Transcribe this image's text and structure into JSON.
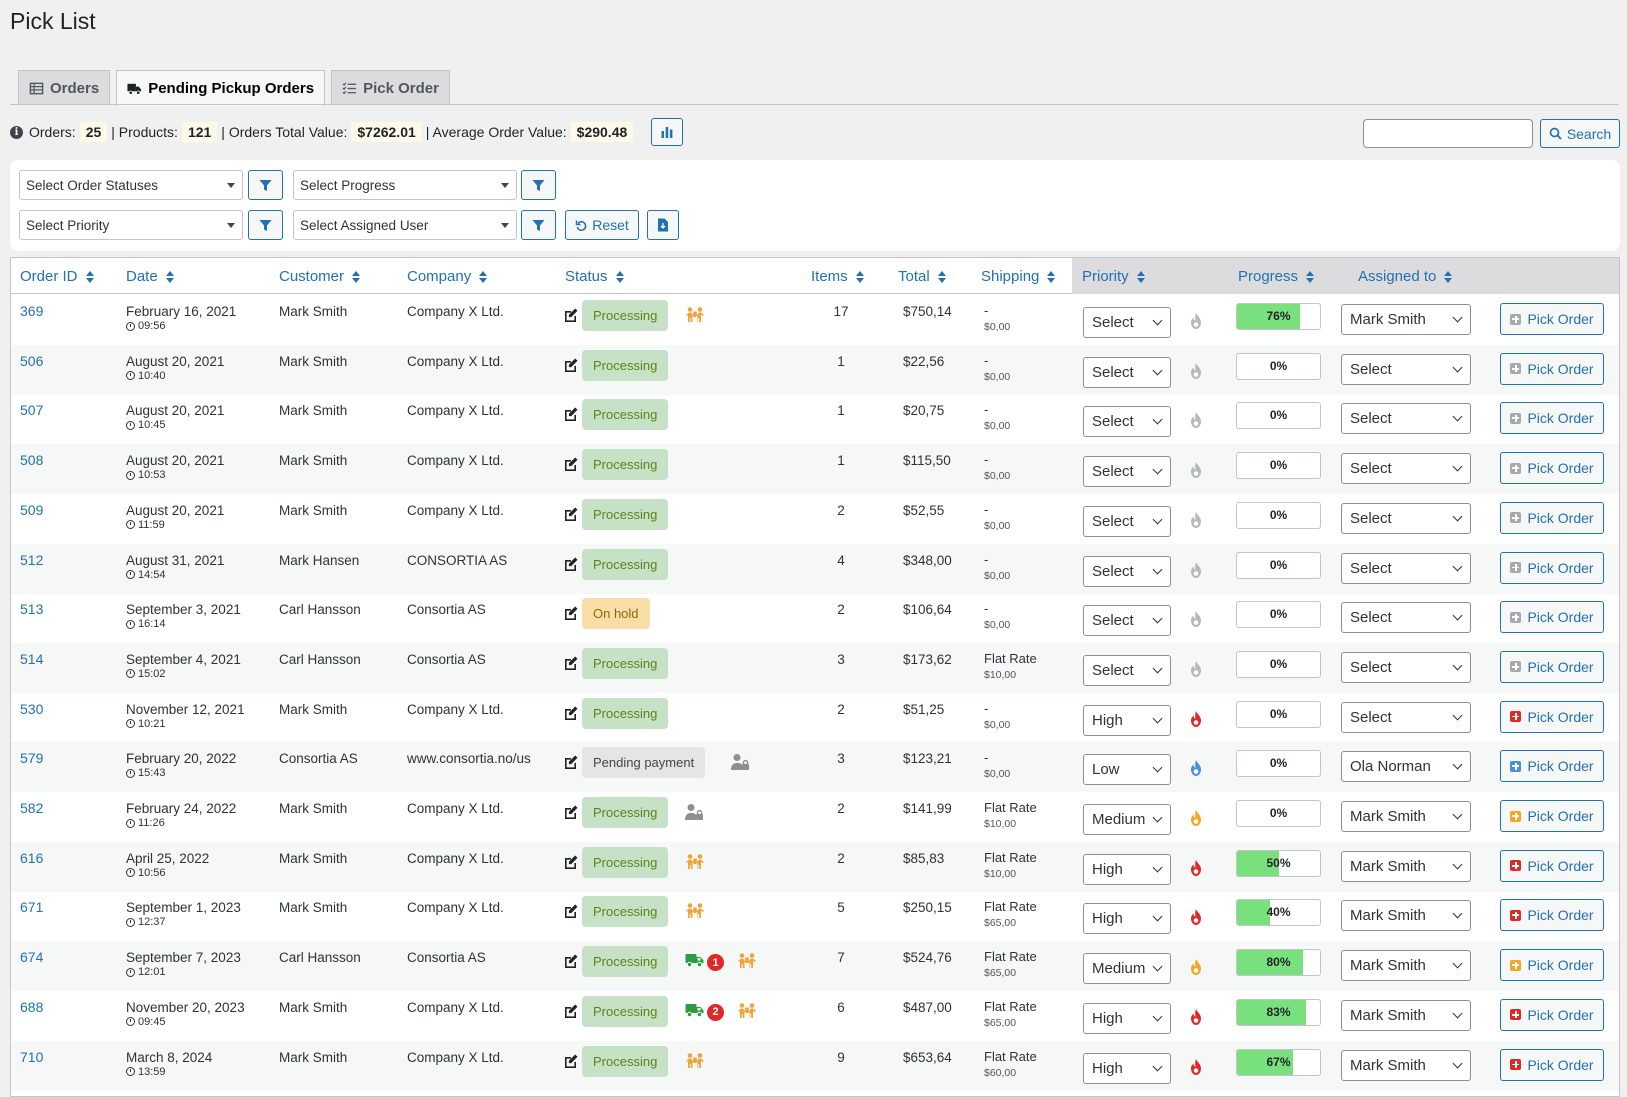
{
  "page": {
    "title": "Pick List"
  },
  "tabs": [
    {
      "label": "Orders",
      "icon": "table-icon",
      "active": false
    },
    {
      "label": "Pending Pickup Orders",
      "icon": "truck-icon",
      "active": true
    },
    {
      "label": "Pick Order",
      "icon": "checklist-icon",
      "active": false
    }
  ],
  "stats": {
    "orders_label": "Orders:",
    "orders_value": "25",
    "products_label": "| Products:",
    "products_value": "121",
    "total_label": "| Orders Total Value:",
    "total_value": "$7262.01",
    "avg_label": "| Average Order Value:",
    "avg_value": "$290.48"
  },
  "search": {
    "button_label": "Search",
    "placeholder": "",
    "value": ""
  },
  "filters": {
    "order_statuses": "Select Order Statuses",
    "progress": "Select Progress",
    "priority": "Select Priority",
    "assigned_user": "Select Assigned User",
    "reset_label": "Reset"
  },
  "columns": {
    "order_id": "Order ID",
    "date": "Date",
    "customer": "Customer",
    "company": "Company",
    "status": "Status",
    "items": "Items",
    "total": "Total",
    "shipping": "Shipping",
    "priority": "Priority",
    "progress": "Progress",
    "assigned_to": "Assigned to"
  },
  "pick_label": "Pick Order",
  "colors": {
    "accent": "#2271b1",
    "processing_bg": "#c6e1c6",
    "processing_fg": "#5b841b",
    "onhold_bg": "#f8dda7",
    "onhold_fg": "#94660c",
    "pending_bg": "#e5e5e5",
    "pending_fg": "#454545",
    "priority_high": "#e32727",
    "priority_medium": "#f6a623",
    "priority_low": "#4a90e2",
    "priority_none": "#b4b9be",
    "progress_fill": "#79e07e",
    "picker_icon": "#f0a33a",
    "truck_icon": "#2a9d3f"
  },
  "rows": [
    {
      "id": "369",
      "date": "February 16, 2021",
      "time": "09:56",
      "customer": "Mark Smith",
      "company": "Company X Ltd.",
      "status": "Processing",
      "status_type": "processing",
      "icons": [
        "pickers"
      ],
      "items": "17",
      "total": "$750,14",
      "shipping": "-",
      "shipping_sub": "$0,00",
      "priority": "Select",
      "priority_level": "none",
      "progress": "76%",
      "progress_value": 76,
      "assigned": "Mark Smith"
    },
    {
      "id": "506",
      "date": "August 20, 2021",
      "time": "10:40",
      "customer": "Mark Smith",
      "company": "Company X Ltd.",
      "status": "Processing",
      "status_type": "processing",
      "icons": [],
      "items": "1",
      "total": "$22,56",
      "shipping": "-",
      "shipping_sub": "$0,00",
      "priority": "Select",
      "priority_level": "none",
      "progress": "0%",
      "progress_value": 0,
      "assigned": "Select"
    },
    {
      "id": "507",
      "date": "August 20, 2021",
      "time": "10:45",
      "customer": "Mark Smith",
      "company": "Company X Ltd.",
      "status": "Processing",
      "status_type": "processing",
      "icons": [],
      "items": "1",
      "total": "$20,75",
      "shipping": "-",
      "shipping_sub": "$0,00",
      "priority": "Select",
      "priority_level": "none",
      "progress": "0%",
      "progress_value": 0,
      "assigned": "Select"
    },
    {
      "id": "508",
      "date": "August 20, 2021",
      "time": "10:53",
      "customer": "Mark Smith",
      "company": "Company X Ltd.",
      "status": "Processing",
      "status_type": "processing",
      "icons": [],
      "items": "1",
      "total": "$115,50",
      "shipping": "-",
      "shipping_sub": "$0,00",
      "priority": "Select",
      "priority_level": "none",
      "progress": "0%",
      "progress_value": 0,
      "assigned": "Select"
    },
    {
      "id": "509",
      "date": "August 20, 2021",
      "time": "11:59",
      "customer": "Mark Smith",
      "company": "Company X Ltd.",
      "status": "Processing",
      "status_type": "processing",
      "icons": [],
      "items": "2",
      "total": "$52,55",
      "shipping": "-",
      "shipping_sub": "$0,00",
      "priority": "Select",
      "priority_level": "none",
      "progress": "0%",
      "progress_value": 0,
      "assigned": "Select"
    },
    {
      "id": "512",
      "date": "August 31, 2021",
      "time": "14:54",
      "customer": "Mark Hansen",
      "company": "CONSORTIA AS",
      "status": "Processing",
      "status_type": "processing",
      "icons": [],
      "items": "4",
      "total": "$348,00",
      "shipping": "-",
      "shipping_sub": "$0,00",
      "priority": "Select",
      "priority_level": "none",
      "progress": "0%",
      "progress_value": 0,
      "assigned": "Select"
    },
    {
      "id": "513",
      "date": "September 3, 2021",
      "time": "16:14",
      "customer": "Carl Hansson",
      "company": "Consortia AS",
      "status": "On hold",
      "status_type": "hold",
      "icons": [],
      "items": "2",
      "total": "$106,64",
      "shipping": "-",
      "shipping_sub": "$0,00",
      "priority": "Select",
      "priority_level": "none",
      "progress": "0%",
      "progress_value": 0,
      "assigned": "Select"
    },
    {
      "id": "514",
      "date": "September 4, 2021",
      "time": "15:02",
      "customer": "Carl Hansson",
      "company": "Consortia AS",
      "status": "Processing",
      "status_type": "processing",
      "icons": [],
      "items": "3",
      "total": "$173,62",
      "shipping": "Flat Rate",
      "shipping_sub": "$10,00",
      "priority": "Select",
      "priority_level": "none",
      "progress": "0%",
      "progress_value": 0,
      "assigned": "Select"
    },
    {
      "id": "530",
      "date": "November 12, 2021",
      "time": "10:21",
      "customer": "Mark Smith",
      "company": "Company X Ltd.",
      "status": "Processing",
      "status_type": "processing",
      "icons": [],
      "items": "2",
      "total": "$51,25",
      "shipping": "-",
      "shipping_sub": "$0,00",
      "priority": "High",
      "priority_level": "high",
      "progress": "0%",
      "progress_value": 0,
      "assigned": "Select"
    },
    {
      "id": "579",
      "date": "February 20, 2022",
      "time": "15:43",
      "customer": "Consortia AS",
      "company": "www.consortia.no/us",
      "status": "Pending payment",
      "status_type": "pending",
      "icons": [
        "user-lock"
      ],
      "items": "3",
      "total": "$123,21",
      "shipping": "-",
      "shipping_sub": "$0,00",
      "priority": "Low",
      "priority_level": "low",
      "progress": "0%",
      "progress_value": 0,
      "assigned": "Ola Norman"
    },
    {
      "id": "582",
      "date": "February 24, 2022",
      "time": "11:26",
      "customer": "Mark Smith",
      "company": "Company X Ltd.",
      "status": "Processing",
      "status_type": "processing",
      "icons": [
        "user-lock"
      ],
      "items": "2",
      "total": "$141,99",
      "shipping": "Flat Rate",
      "shipping_sub": "$10,00",
      "priority": "Medium",
      "priority_level": "medium",
      "progress": "0%",
      "progress_value": 0,
      "assigned": "Mark Smith"
    },
    {
      "id": "616",
      "date": "April 25, 2022",
      "time": "10:56",
      "customer": "Mark Smith",
      "company": "Company X Ltd.",
      "status": "Processing",
      "status_type": "processing",
      "icons": [
        "pickers"
      ],
      "items": "2",
      "total": "$85,83",
      "shipping": "Flat Rate",
      "shipping_sub": "$10,00",
      "priority": "High",
      "priority_level": "high",
      "progress": "50%",
      "progress_value": 50,
      "assigned": "Mark Smith"
    },
    {
      "id": "671",
      "date": "September 1, 2023",
      "time": "12:37",
      "customer": "Mark Smith",
      "company": "Company X Ltd.",
      "status": "Processing",
      "status_type": "processing",
      "icons": [
        "pickers"
      ],
      "items": "5",
      "total": "$250,15",
      "shipping": "Flat Rate",
      "shipping_sub": "$65,00",
      "priority": "High",
      "priority_level": "high",
      "progress": "40%",
      "progress_value": 40,
      "assigned": "Mark Smith"
    },
    {
      "id": "674",
      "date": "September 7, 2023",
      "time": "12:01",
      "customer": "Carl Hansson",
      "company": "Consortia AS",
      "status": "Processing",
      "status_type": "processing",
      "icons": [
        "truck",
        "pickers"
      ],
      "truck_count": "1",
      "items": "7",
      "total": "$524,76",
      "shipping": "Flat Rate",
      "shipping_sub": "$65,00",
      "priority": "Medium",
      "priority_level": "medium",
      "progress": "80%",
      "progress_value": 80,
      "assigned": "Mark Smith"
    },
    {
      "id": "688",
      "date": "November 20, 2023",
      "time": "09:45",
      "customer": "Mark Smith",
      "company": "Company X Ltd.",
      "status": "Processing",
      "status_type": "processing",
      "icons": [
        "truck",
        "pickers"
      ],
      "truck_count": "2",
      "items": "6",
      "total": "$487,00",
      "shipping": "Flat Rate",
      "shipping_sub": "$65,00",
      "priority": "High",
      "priority_level": "high",
      "progress": "83%",
      "progress_value": 83,
      "assigned": "Mark Smith"
    },
    {
      "id": "710",
      "date": "March 8, 2024",
      "time": "13:59",
      "customer": "Mark Smith",
      "company": "Company X Ltd.",
      "status": "Processing",
      "status_type": "processing",
      "icons": [
        "pickers"
      ],
      "items": "9",
      "total": "$653,64",
      "shipping": "Flat Rate",
      "shipping_sub": "$60,00",
      "priority": "High",
      "priority_level": "high",
      "progress": "67%",
      "progress_value": 67,
      "assigned": "Mark Smith"
    }
  ]
}
